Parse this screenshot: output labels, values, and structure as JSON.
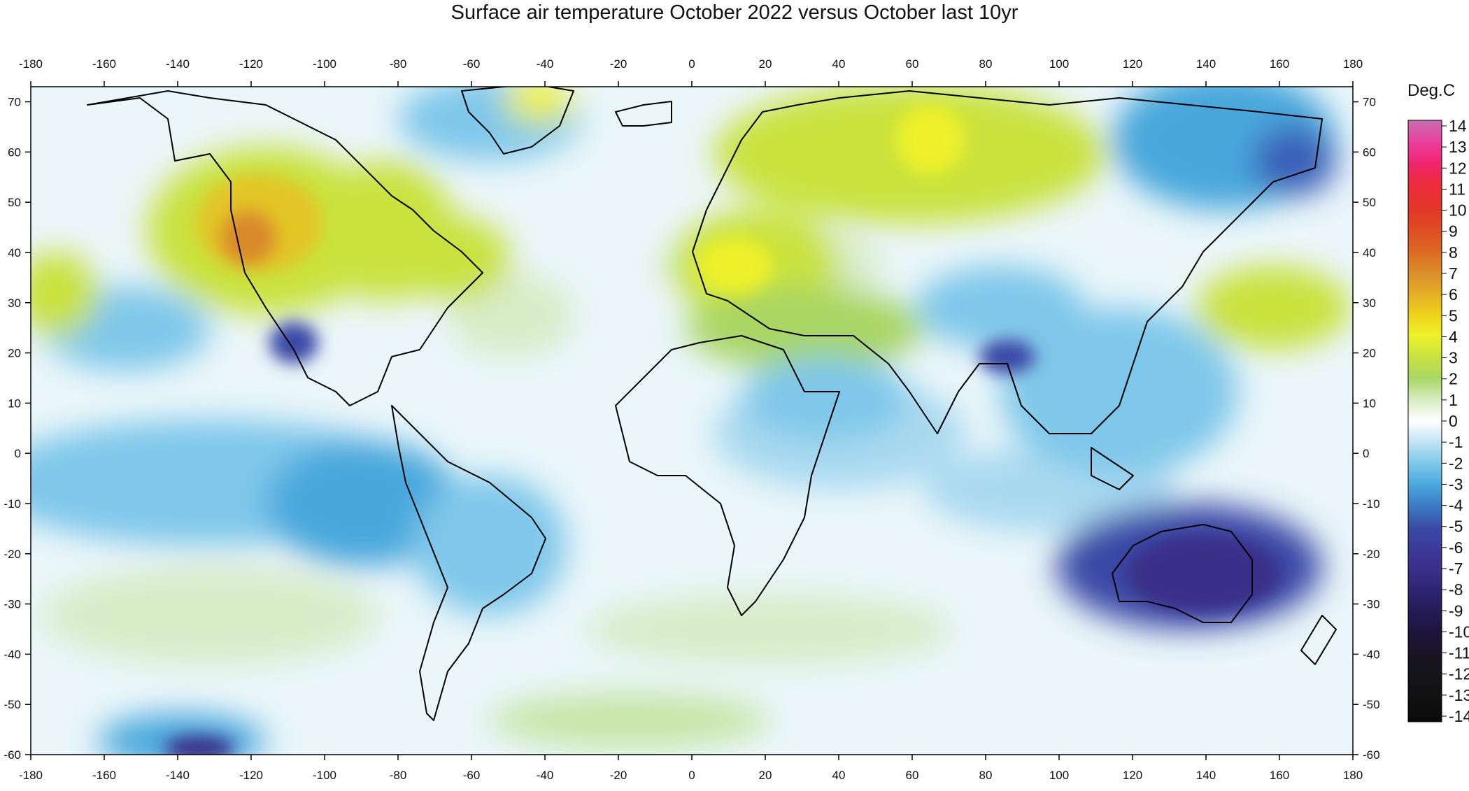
{
  "title": "Surface air temperature October 2022 versus October last 10yr",
  "map": {
    "lon_range": [
      -180,
      180
    ],
    "lat_range": [
      -60,
      73
    ],
    "lon_ticks": [
      "-180",
      "-160",
      "-140",
      "-120",
      "-100",
      "-80",
      "-60",
      "-40",
      "-20",
      "0",
      "20",
      "40",
      "60",
      "80",
      "100",
      "120",
      "140",
      "160",
      "180"
    ],
    "lat_ticks": [
      "70",
      "60",
      "50",
      "40",
      "30",
      "20",
      "10",
      "0",
      "-10",
      "-20",
      "-30",
      "-40",
      "-50",
      "-60"
    ],
    "background_color": "#ffffff",
    "coastline_color": "#000000"
  },
  "colorbar": {
    "unit": "Deg.C",
    "labels": [
      "14",
      "13",
      "12",
      "11",
      "10",
      "9",
      "8",
      "7",
      "6",
      "5",
      "4",
      "3",
      "2",
      "1",
      "0",
      "-1",
      "-2",
      "-3",
      "-4",
      "-5",
      "-6",
      "-7",
      "-8",
      "-9",
      "-10",
      "-11",
      "-12",
      "-13",
      "-14"
    ],
    "colors": [
      "#c76fb0",
      "#ea3f9e",
      "#f0266f",
      "#ec2b3c",
      "#e2352a",
      "#df4a24",
      "#dc6524",
      "#db8a2a",
      "#e3ab28",
      "#efd01c",
      "#eef12a",
      "#c9e23e",
      "#a9d664",
      "#d7ecc1",
      "#ffffff",
      "#bfe3f1",
      "#7cc7ea",
      "#4aa7dc",
      "#3b78c3",
      "#3b4aa6",
      "#3a3996",
      "#3a2f88",
      "#2d226e",
      "#231a53",
      "#1c1438",
      "#181422",
      "#141418",
      "#101010",
      "#0a0a0a"
    ]
  },
  "anomaly_regions": [
    {
      "name": "north-america-west",
      "value": 5
    },
    {
      "name": "europe-central",
      "value": 3
    },
    {
      "name": "siberia-west",
      "value": 2
    },
    {
      "name": "greenland-south",
      "value": 3
    },
    {
      "name": "australia",
      "value": -6
    },
    {
      "name": "mexico",
      "value": -4
    },
    {
      "name": "india",
      "value": -3
    },
    {
      "name": "east-siberia",
      "value": -4
    },
    {
      "name": "antarctic-edge-pacific",
      "value": -5
    },
    {
      "name": "pacific-equatorial",
      "value": -2
    }
  ]
}
